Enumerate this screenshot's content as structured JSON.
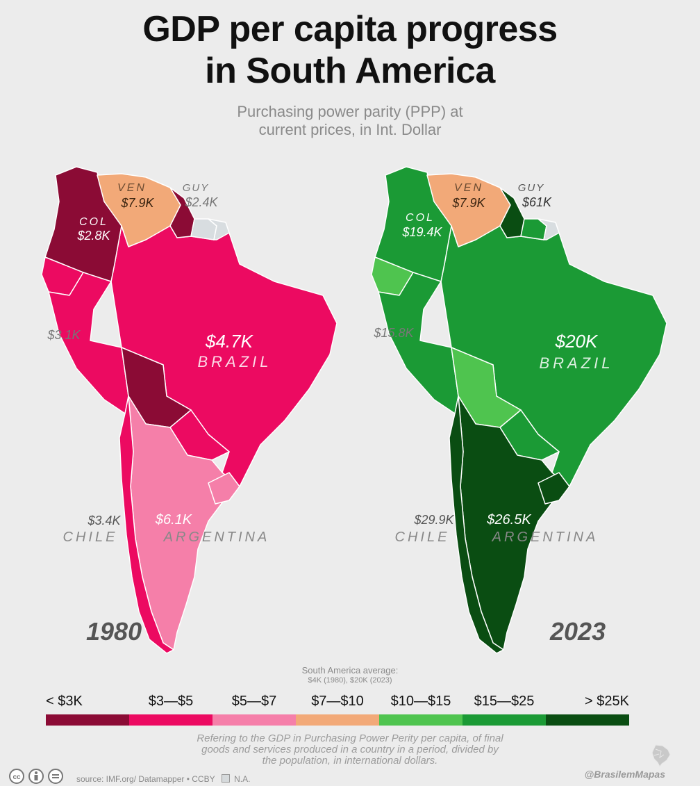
{
  "title": {
    "line1": "GDP per capita progress",
    "line2": "in South America"
  },
  "subtitle": {
    "line1": "Purchasing power parity (PPP) at",
    "line2": "current prices, in Int. Dollar"
  },
  "maps": [
    {
      "year": "1980",
      "labels": {
        "ven_code": "VEN",
        "ven_value": "$7.9K",
        "guy_code": "GUY",
        "guy_value": "$2.4K",
        "col_code": "COL",
        "col_value": "$2.8K",
        "peru_value": "$3.1K",
        "bra_value": "$4.7K",
        "bra_name": "BRAZIL",
        "chl_value": "$3.4K",
        "chl_name": "CHILE",
        "arg_value": "$6.1K",
        "arg_name": "ARGENTINA"
      },
      "colors": {
        "venezuela": "#f2a978",
        "guyana": "#8b0b35",
        "suriname": "#d8dde0",
        "colombia": "#8b0b35",
        "ecuador": "#ec0a61",
        "peru": "#ec0a61",
        "brazil": "#ec0a61",
        "bolivia": "#8b0b35",
        "paraguay": "#ec0a61",
        "chile": "#ec0a61",
        "argentina": "#f57fa9",
        "uruguay": "#f57fa9"
      }
    },
    {
      "year": "2023",
      "labels": {
        "ven_code": "VEN",
        "ven_value": "$7.9K",
        "guy_code": "GUY",
        "guy_value": "$61K",
        "col_code": "COL",
        "col_value": "$19.4K",
        "peru_value": "$15.8K",
        "bra_value": "$20K",
        "bra_name": "BRAZIL",
        "chl_value": "$29.9K",
        "chl_name": "CHILE",
        "arg_value": "$26.5K",
        "arg_name": "ARGENTINA"
      },
      "colors": {
        "venezuela": "#f2a978",
        "guyana": "#0a4d12",
        "suriname": "#1b9a35",
        "french_guiana": "#d8dde0",
        "colombia": "#1b9a35",
        "ecuador": "#4fc44f",
        "peru": "#1b9a35",
        "brazil": "#1b9a35",
        "bolivia": "#4fc44f",
        "paraguay": "#1b9a35",
        "chile": "#0a4d12",
        "argentina": "#0a4d12",
        "uruguay": "#0a4d12"
      }
    }
  ],
  "average": {
    "line1": "South America average:",
    "line2": "$4K (1980), $20K (2023)"
  },
  "legend": [
    {
      "label": "< $3K",
      "color": "#8b0b35"
    },
    {
      "label": "$3—$5",
      "color": "#ec0a61"
    },
    {
      "label": "$5—$7",
      "color": "#f57fa9"
    },
    {
      "label": "$7—$10",
      "color": "#f2a978"
    },
    {
      "label": "$10—$15",
      "color": "#4fc44f"
    },
    {
      "label": "$15—$25",
      "color": "#1b9a35"
    },
    {
      "label": "> $25K",
      "color": "#0a4d12"
    }
  ],
  "footnote": {
    "line1": "Refering to the GDP in Purchasing Power Perity per capita, of final",
    "line2": "goods and services produced in a country in a period, divided by",
    "line3": "the population, in international dollars."
  },
  "footer": {
    "source": "source: IMF.org/ Datamapper • CCBY",
    "na_label": "N.A.",
    "credit": "@BrasilemMapas",
    "license_icons": [
      "cc-icon",
      "by-icon",
      "nd-icon"
    ]
  }
}
